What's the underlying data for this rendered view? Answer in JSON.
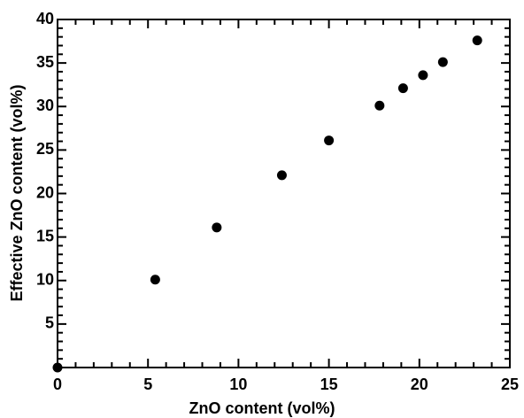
{
  "chart_data": {
    "type": "scatter",
    "xlabel": "ZnO content (vol%)",
    "ylabel": "Effective ZnO content (vol%)",
    "x": [
      0,
      5.4,
      8.8,
      12.4,
      15.0,
      17.8,
      19.1,
      20.2,
      21.3,
      23.2
    ],
    "values": [
      0,
      10.1,
      16.1,
      22.1,
      26.1,
      30.1,
      32.1,
      33.6,
      35.1,
      37.6
    ],
    "color": "#000000",
    "xlim": [
      0,
      25
    ],
    "ylim": [
      0,
      40
    ],
    "xticks": [
      0,
      5,
      10,
      15,
      20,
      25
    ],
    "yticks": [
      5,
      10,
      15,
      20,
      25,
      30,
      35,
      40
    ],
    "xminorticks": [
      1,
      2,
      3,
      4,
      6,
      7,
      8,
      9,
      11,
      12,
      13,
      14,
      16,
      17,
      18,
      19,
      21,
      22,
      23,
      24
    ],
    "yminorticks": [
      1,
      2,
      3,
      4,
      6,
      7,
      8,
      9,
      11,
      12,
      13,
      14,
      16,
      17,
      18,
      19,
      21,
      22,
      23,
      24,
      26,
      27,
      28,
      29,
      31,
      32,
      33,
      34,
      36,
      37,
      38,
      39
    ],
    "grid": false
  }
}
